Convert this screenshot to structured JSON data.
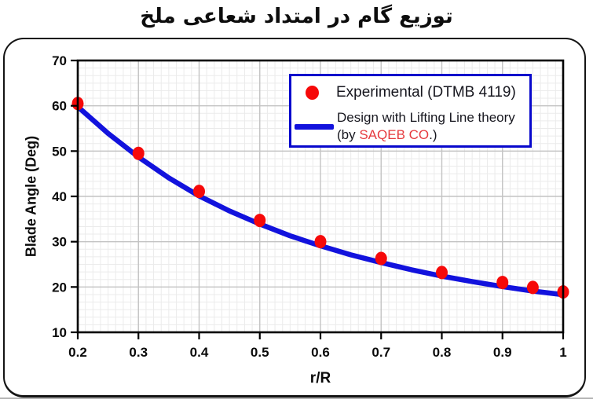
{
  "title": "توزیع گام در امتداد شعاعی ملخ",
  "colors": {
    "experimental_red": "#f60909",
    "design_blue": "#1212dd",
    "legend_border_blue": "#0808cc",
    "brand_red": "#e63a3e",
    "legend_text": "#17171f",
    "axis_black": "#000000",
    "grid_major": "#c3c3c3",
    "grid_minor": "#ebebeb"
  },
  "chart_data": {
    "type": "scatter",
    "title": "توزیع گام در امتداد شعاعی ملخ",
    "xlabel": "r/R",
    "ylabel": "Blade Angle (Deg)",
    "xlim": [
      0.2,
      1.0
    ],
    "ylim": [
      10,
      70
    ],
    "x_ticks": [
      0.2,
      0.3,
      0.4,
      0.5,
      0.6,
      0.7,
      0.8,
      0.9,
      1.0
    ],
    "x_tick_labels": [
      "0.2",
      "0.3",
      "0.4",
      "0.5",
      "0.6",
      "0.7",
      "0.8",
      "0.9",
      "1"
    ],
    "y_ticks": [
      10,
      20,
      30,
      40,
      50,
      60,
      70
    ],
    "y_tick_labels": [
      "10",
      "20",
      "30",
      "40",
      "50",
      "60",
      "70"
    ],
    "grid": "major+minor",
    "legend_position": "top-right",
    "series": [
      {
        "name": "Experimental (DTMB 4119)",
        "type": "scatter",
        "color": "#f60909",
        "x": [
          0.2,
          0.3,
          0.4,
          0.5,
          0.6,
          0.7,
          0.8,
          0.9,
          0.95,
          1.0
        ],
        "y": [
          60.5,
          49.5,
          41.1,
          34.7,
          30.0,
          26.3,
          23.2,
          21.0,
          19.9,
          18.9
        ]
      },
      {
        "name": "Design with Lifting Line theory (by SAQEB CO.)",
        "type": "line",
        "color": "#1212dd",
        "x": [
          0.2,
          0.25,
          0.3,
          0.35,
          0.4,
          0.45,
          0.5,
          0.55,
          0.6,
          0.65,
          0.7,
          0.75,
          0.8,
          0.85,
          0.9,
          0.95,
          1.0
        ],
        "y": [
          59.8,
          53.9,
          48.7,
          44.1,
          40.1,
          36.8,
          33.9,
          31.3,
          29.1,
          27.1,
          25.4,
          23.8,
          22.4,
          21.2,
          20.1,
          19.1,
          18.3
        ]
      }
    ],
    "legend": {
      "experimental_label": "Experimental (DTMB 4119)",
      "design_label_line1": "Design with Lifting Line theory",
      "design_label_line2_pre": "(by ",
      "design_label_line2_brand": "SAQEB CO",
      "design_label_line2_post": ".)"
    }
  }
}
